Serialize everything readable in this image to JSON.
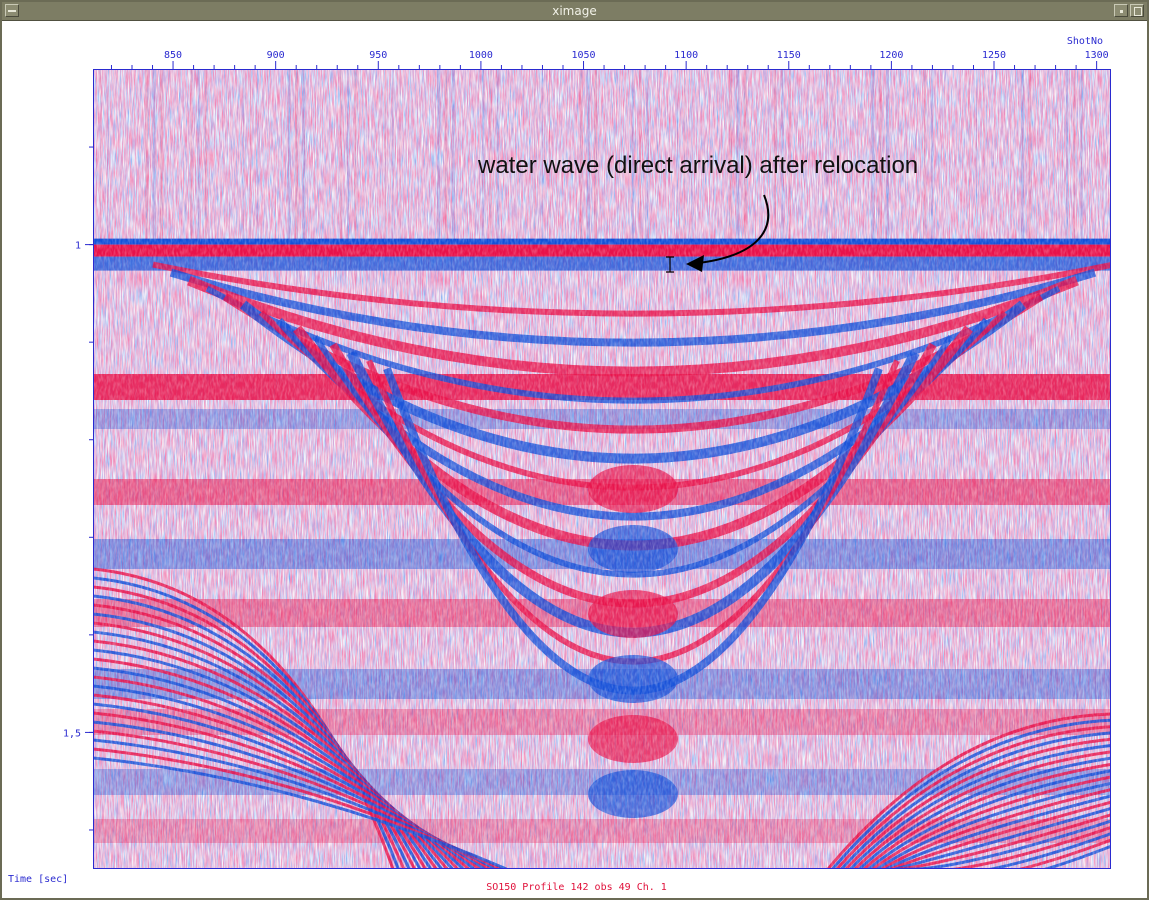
{
  "window": {
    "title": "ximage"
  },
  "titlebar_icons": [
    "window-menu-icon",
    "minimize-icon",
    "maximize-icon"
  ],
  "plot": {
    "x_axis_title": "ShotNo",
    "y_axis_title": "Time [sec]",
    "footer_label": "SO150 Profile 142 obs 49 Ch. 1",
    "annotation": "water wave (direct arrival) after relocation",
    "colors": {
      "positive": "#e8124a",
      "negative": "#1450d8",
      "axis": "#2a2ad0",
      "footer": "#e0103a"
    }
  },
  "chart_data": {
    "type": "heatmap",
    "title": "",
    "xlabel": "ShotNo",
    "ylabel": "Time [sec]",
    "xlim": [
      811,
      1307
    ],
    "ylim": [
      0.82,
      1.64
    ],
    "x_ticks": [
      "850",
      "900",
      "950",
      "1000",
      "1050",
      "1100",
      "1150",
      "1200",
      "1250",
      "1300"
    ],
    "x_tick_values": [
      850,
      900,
      950,
      1000,
      1050,
      1100,
      1150,
      1200,
      1250,
      1300
    ],
    "y_ticks": [
      "1",
      "1,5"
    ],
    "y_tick_values": [
      1.0,
      1.5
    ],
    "direct_arrival_time": 1.0,
    "annotation_point": {
      "shot": 1093,
      "time": 1.0
    }
  }
}
